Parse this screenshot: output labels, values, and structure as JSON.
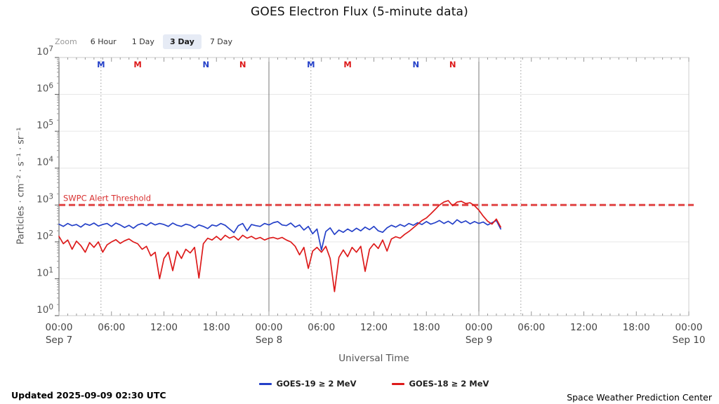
{
  "title": "GOES Electron Flux (5-minute data)",
  "toolbar": {
    "zoom_label": "Zoom",
    "ranges": [
      {
        "label": "6 Hour",
        "selected": false
      },
      {
        "label": "1 Day",
        "selected": false
      },
      {
        "label": "3 Day",
        "selected": true
      },
      {
        "label": "7 Day",
        "selected": false
      }
    ]
  },
  "footer": {
    "updated": "Updated 2025-09-09 02:30 UTC",
    "source": "Space Weather Prediction Center"
  },
  "chart_data": {
    "type": "line",
    "title": "GOES Electron Flux (5-minute data)",
    "xlabel": "Universal Time",
    "ylabel": "Particles · cm⁻² · s⁻¹ · sr⁻¹",
    "y_scale": "log10",
    "ylim_log10": [
      0,
      7
    ],
    "y_tick_exponents": [
      0,
      1,
      2,
      3,
      4,
      5,
      6,
      7
    ],
    "x_range_hours": [
      0,
      72
    ],
    "x_major_ticks": [
      {
        "h": 0,
        "label": "00:00",
        "date": "Sep 7"
      },
      {
        "h": 6,
        "label": "06:00"
      },
      {
        "h": 12,
        "label": "12:00"
      },
      {
        "h": 18,
        "label": "18:00"
      },
      {
        "h": 24,
        "label": "00:00",
        "date": "Sep 8"
      },
      {
        "h": 30,
        "label": "06:00"
      },
      {
        "h": 36,
        "label": "12:00"
      },
      {
        "h": 42,
        "label": "18:00"
      },
      {
        "h": 48,
        "label": "00:00",
        "date": "Sep 9"
      },
      {
        "h": 54,
        "label": "06:00"
      },
      {
        "h": 60,
        "label": "12:00"
      },
      {
        "h": 66,
        "label": "18:00"
      },
      {
        "h": 72,
        "label": "00:00",
        "date": "Sep 10"
      }
    ],
    "grid": {
      "horizontal_decades": true,
      "vertical": false
    },
    "day_boundary_lines_h": [
      24,
      48
    ],
    "satellite_midnight_dotted_lines_h": [
      4.8,
      28.8,
      52.8
    ],
    "satellite_markers": [
      {
        "h": 4.8,
        "label": "M",
        "color": "#2440c8"
      },
      {
        "h": 9.0,
        "label": "M",
        "color": "#dd1a1a"
      },
      {
        "h": 16.8,
        "label": "N",
        "color": "#2440c8"
      },
      {
        "h": 21.0,
        "label": "N",
        "color": "#dd1a1a"
      },
      {
        "h": 28.8,
        "label": "M",
        "color": "#2440c8"
      },
      {
        "h": 33.0,
        "label": "M",
        "color": "#dd1a1a"
      },
      {
        "h": 40.8,
        "label": "N",
        "color": "#2440c8"
      },
      {
        "h": 45.0,
        "label": "N",
        "color": "#dd1a1a"
      }
    ],
    "threshold": {
      "label": "SWPC Alert Threshold",
      "value": 1000,
      "log10": 3,
      "line_color": "#e04545",
      "label_color": "#d93030"
    },
    "legend_position": "bottom",
    "series": [
      {
        "name": "GOES-19 ≥ 2 MeV",
        "color": "#2440c8",
        "start_h": 0,
        "step_h": 0.5,
        "log10_values": [
          2.48,
          2.42,
          2.5,
          2.44,
          2.47,
          2.4,
          2.49,
          2.45,
          2.51,
          2.43,
          2.47,
          2.5,
          2.42,
          2.51,
          2.46,
          2.39,
          2.45,
          2.37,
          2.46,
          2.5,
          2.44,
          2.52,
          2.46,
          2.5,
          2.47,
          2.42,
          2.51,
          2.45,
          2.42,
          2.48,
          2.45,
          2.38,
          2.46,
          2.42,
          2.36,
          2.46,
          2.43,
          2.5,
          2.45,
          2.35,
          2.25,
          2.44,
          2.5,
          2.3,
          2.47,
          2.44,
          2.42,
          2.5,
          2.46,
          2.52,
          2.55,
          2.46,
          2.44,
          2.51,
          2.4,
          2.46,
          2.32,
          2.42,
          2.22,
          2.35,
          1.78,
          2.28,
          2.38,
          2.2,
          2.32,
          2.26,
          2.35,
          2.28,
          2.37,
          2.3,
          2.4,
          2.33,
          2.42,
          2.3,
          2.26,
          2.38,
          2.45,
          2.4,
          2.47,
          2.42,
          2.5,
          2.45,
          2.52,
          2.47,
          2.55,
          2.48,
          2.52,
          2.58,
          2.5,
          2.56,
          2.48,
          2.6,
          2.52,
          2.57,
          2.49,
          2.55,
          2.5,
          2.54,
          2.46,
          2.52,
          2.58,
          2.35
        ]
      },
      {
        "name": "GOES-18 ≥ 2 MeV",
        "color": "#dd1a1a",
        "start_h": 0,
        "step_h": 0.5,
        "log10_values": [
          2.15,
          1.95,
          2.05,
          1.8,
          2.02,
          1.9,
          1.72,
          1.98,
          1.85,
          2.0,
          1.72,
          1.92,
          2.0,
          2.06,
          1.96,
          2.03,
          2.08,
          2.0,
          1.95,
          1.8,
          1.88,
          1.62,
          1.72,
          1.0,
          1.55,
          1.72,
          1.22,
          1.75,
          1.55,
          1.8,
          1.7,
          1.85,
          1.02,
          1.95,
          2.1,
          2.05,
          2.15,
          2.05,
          2.18,
          2.1,
          2.15,
          2.05,
          2.18,
          2.1,
          2.15,
          2.08,
          2.12,
          2.05,
          2.1,
          2.12,
          2.08,
          2.12,
          2.05,
          2.0,
          1.88,
          1.65,
          1.85,
          1.28,
          1.75,
          1.85,
          1.72,
          1.88,
          1.55,
          0.65,
          1.58,
          1.78,
          1.6,
          1.85,
          1.72,
          1.88,
          1.2,
          1.8,
          1.95,
          1.82,
          2.05,
          1.75,
          2.08,
          2.14,
          2.1,
          2.2,
          2.28,
          2.38,
          2.48,
          2.58,
          2.65,
          2.76,
          2.88,
          3.0,
          3.08,
          3.12,
          2.98,
          3.08,
          3.1,
          3.04,
          3.06,
          2.98,
          2.86,
          2.7,
          2.56,
          2.48,
          2.62,
          2.4
        ]
      }
    ]
  }
}
